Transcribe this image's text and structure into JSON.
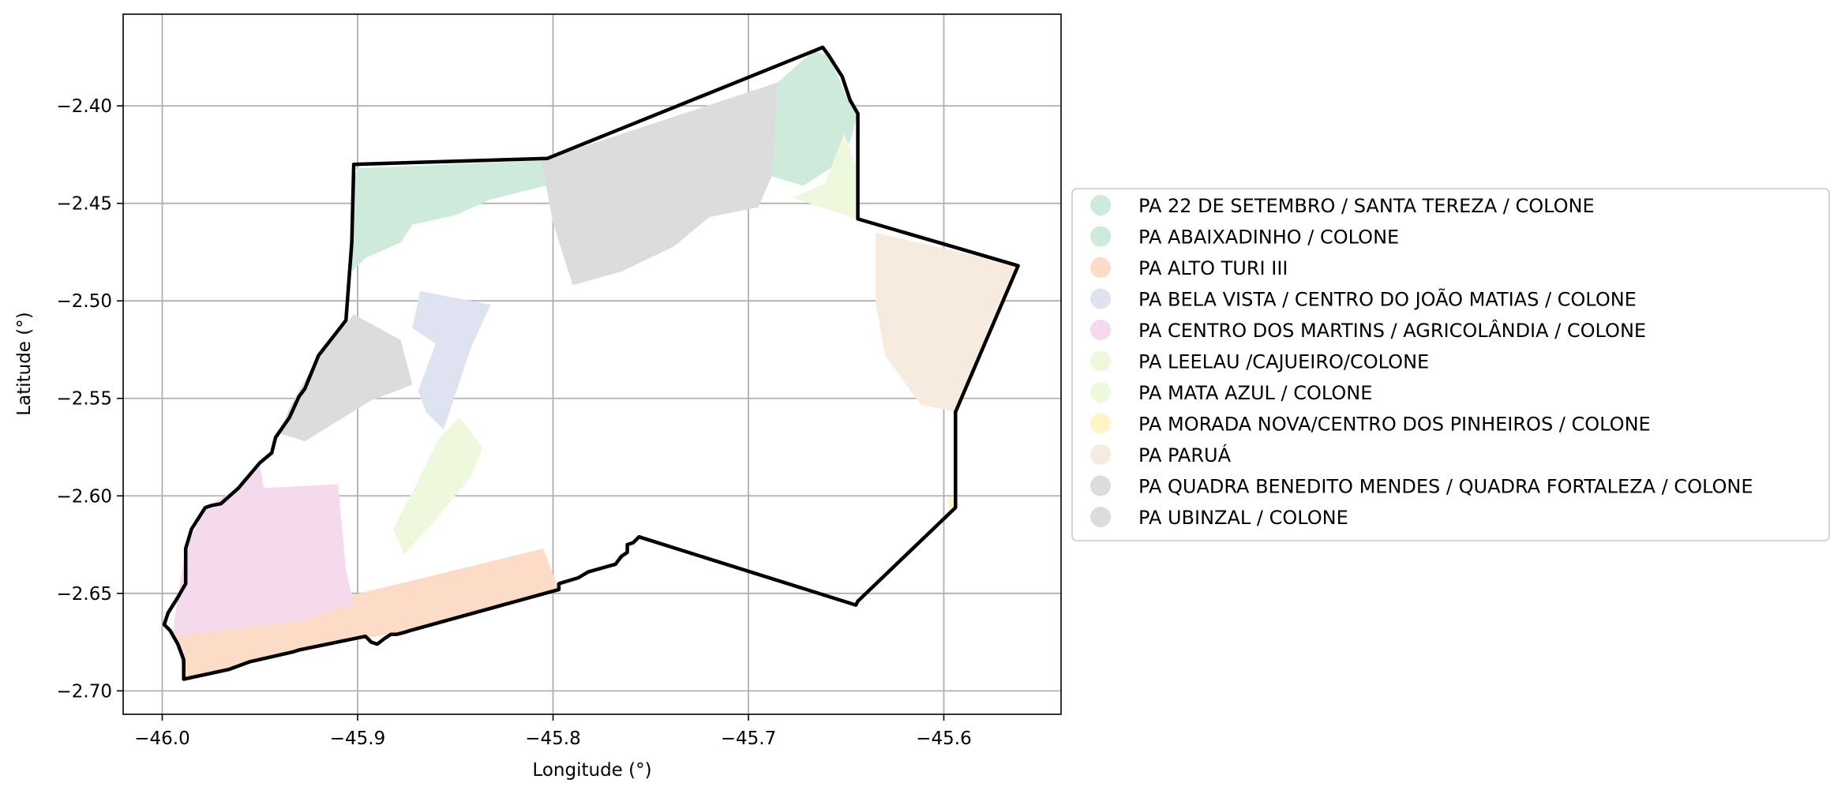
{
  "map": {
    "type": "choropleth-outline",
    "xlabel": "Longitude (°)",
    "ylabel": "Latitude (°)",
    "xlim": [
      -46.02,
      -45.54
    ],
    "ylim": [
      -2.712,
      -2.353
    ],
    "grid": true,
    "legend_position": "right",
    "x_ticks": [
      {
        "value": -46.0,
        "label": "−46.0"
      },
      {
        "value": -45.9,
        "label": "−45.9"
      },
      {
        "value": -45.8,
        "label": "−45.8"
      },
      {
        "value": -45.7,
        "label": "−45.7"
      },
      {
        "value": -45.6,
        "label": "−45.6"
      }
    ],
    "y_ticks": [
      {
        "value": -2.4,
        "label": "−2.40"
      },
      {
        "value": -2.45,
        "label": "−2.45"
      },
      {
        "value": -2.5,
        "label": "−2.50"
      },
      {
        "value": -2.55,
        "label": "−2.55"
      },
      {
        "value": -2.6,
        "label": "−2.60"
      },
      {
        "value": -2.65,
        "label": "−2.65"
      },
      {
        "value": -2.7,
        "label": "−2.70"
      }
    ],
    "boundary": [
      [
        -45.902,
        -2.43
      ],
      [
        -45.803,
        -2.427
      ],
      [
        -45.662,
        -2.37
      ],
      [
        -45.659,
        -2.374
      ],
      [
        -45.652,
        -2.385
      ],
      [
        -45.648,
        -2.397
      ],
      [
        -45.644,
        -2.404
      ],
      [
        -45.644,
        -2.458
      ],
      [
        -45.562,
        -2.482
      ],
      [
        -45.594,
        -2.557
      ],
      [
        -45.594,
        -2.606
      ],
      [
        -45.644,
        -2.654
      ],
      [
        -45.645,
        -2.656
      ],
      [
        -45.756,
        -2.621
      ],
      [
        -45.759,
        -2.624
      ],
      [
        -45.762,
        -2.625
      ],
      [
        -45.762,
        -2.629
      ],
      [
        -45.765,
        -2.631
      ],
      [
        -45.768,
        -2.635
      ],
      [
        -45.782,
        -2.639
      ],
      [
        -45.787,
        -2.642
      ],
      [
        -45.797,
        -2.645
      ],
      [
        -45.797,
        -2.648
      ],
      [
        -45.873,
        -2.669
      ],
      [
        -45.876,
        -2.67
      ],
      [
        -45.88,
        -2.671
      ],
      [
        -45.883,
        -2.671
      ],
      [
        -45.886,
        -2.673
      ],
      [
        -45.89,
        -2.676
      ],
      [
        -45.893,
        -2.675
      ],
      [
        -45.896,
        -2.672
      ],
      [
        -45.93,
        -2.679
      ],
      [
        -45.933,
        -2.68
      ],
      [
        -45.955,
        -2.685
      ],
      [
        -45.966,
        -2.689
      ],
      [
        -45.989,
        -2.694
      ],
      [
        -45.989,
        -2.684
      ],
      [
        -45.992,
        -2.676
      ],
      [
        -45.996,
        -2.669
      ],
      [
        -45.999,
        -2.666
      ],
      [
        -45.997,
        -2.66
      ],
      [
        -45.992,
        -2.652
      ],
      [
        -45.988,
        -2.645
      ],
      [
        -45.988,
        -2.627
      ],
      [
        -45.985,
        -2.617
      ],
      [
        -45.978,
        -2.606
      ],
      [
        -45.975,
        -2.605
      ],
      [
        -45.97,
        -2.604
      ],
      [
        -45.961,
        -2.596
      ],
      [
        -45.95,
        -2.583
      ],
      [
        -45.944,
        -2.578
      ],
      [
        -45.942,
        -2.57
      ],
      [
        -45.935,
        -2.56
      ],
      [
        -45.93,
        -2.549
      ],
      [
        -45.927,
        -2.545
      ],
      [
        -45.92,
        -2.528
      ],
      [
        -45.906,
        -2.51
      ],
      [
        -45.903,
        -2.47
      ],
      [
        -45.902,
        -2.43
      ]
    ],
    "regions": [
      {
        "name": "PA 22 DE SETEMBRO / SANTA TEREZA / COLONE",
        "color": "#cdeadb",
        "polygons": [
          [
            [
              -45.9,
              -2.432
            ],
            [
              -45.806,
              -2.428
            ],
            [
              -45.8,
              -2.44
            ],
            [
              -45.832,
              -2.448
            ],
            [
              -45.85,
              -2.456
            ],
            [
              -45.872,
              -2.461
            ],
            [
              -45.878,
              -2.47
            ],
            [
              -45.896,
              -2.478
            ],
            [
              -45.903,
              -2.485
            ],
            [
              -45.903,
              -2.44
            ]
          ]
        ]
      },
      {
        "name": "PA ABAIXADINHO / COLONE",
        "color": "#cdeadb",
        "polygons": [
          [
            [
              -45.685,
              -2.388
            ],
            [
              -45.667,
              -2.372
            ],
            [
              -45.659,
              -2.374
            ],
            [
              -45.65,
              -2.395
            ],
            [
              -45.644,
              -2.404
            ],
            [
              -45.648,
              -2.418
            ],
            [
              -45.655,
              -2.43
            ],
            [
              -45.672,
              -2.441
            ],
            [
              -45.688,
              -2.436
            ],
            [
              -45.688,
              -2.413
            ]
          ]
        ]
      },
      {
        "name": "PA ALTO TURI III",
        "color": "#fcdcc7",
        "polygons": [
          [
            [
              -45.995,
              -2.672
            ],
            [
              -45.899,
              -2.65
            ],
            [
              -45.805,
              -2.627
            ],
            [
              -45.797,
              -2.648
            ],
            [
              -45.873,
              -2.669
            ],
            [
              -45.93,
              -2.679
            ],
            [
              -45.989,
              -2.694
            ],
            [
              -45.992,
              -2.676
            ]
          ]
        ]
      },
      {
        "name": "PA BELA VISTA / CENTRO DO JOÃO MATIAS / COLONE",
        "color": "#dfe3f1",
        "polygons": [
          [
            [
              -45.868,
              -2.495
            ],
            [
              -45.832,
              -2.502
            ],
            [
              -45.842,
              -2.524
            ],
            [
              -45.856,
              -2.566
            ],
            [
              -45.865,
              -2.557
            ],
            [
              -45.869,
              -2.546
            ],
            [
              -45.86,
              -2.522
            ],
            [
              -45.872,
              -2.514
            ]
          ]
        ]
      },
      {
        "name": "PA CENTRO DOS MARTINS / AGRICOLÂNDIA / COLONE",
        "color": "#f5d9ec",
        "polygons": [
          [
            [
              -45.95,
              -2.585
            ],
            [
              -45.948,
              -2.596
            ],
            [
              -45.91,
              -2.594
            ],
            [
              -45.906,
              -2.638
            ],
            [
              -45.902,
              -2.655
            ],
            [
              -45.93,
              -2.664
            ],
            [
              -45.995,
              -2.672
            ],
            [
              -45.992,
              -2.652
            ],
            [
              -45.988,
              -2.627
            ],
            [
              -45.978,
              -2.606
            ],
            [
              -45.961,
              -2.596
            ]
          ]
        ]
      },
      {
        "name": "PA LEELAU /CAJUEIRO/COLONE",
        "color": "#eef8dc",
        "polygons": [
          [
            [
              -45.651,
              -2.414
            ],
            [
              -45.661,
              -2.44
            ],
            [
              -45.678,
              -2.447
            ],
            [
              -45.644,
              -2.458
            ],
            [
              -45.645,
              -2.43
            ]
          ]
        ]
      },
      {
        "name": "PA MATA AZUL / COLONE",
        "color": "#eef8dc",
        "polygons": [
          [
            [
              -45.848,
              -2.56
            ],
            [
              -45.858,
              -2.57
            ],
            [
              -45.87,
              -2.594
            ],
            [
              -45.882,
              -2.617
            ],
            [
              -45.876,
              -2.63
            ],
            [
              -45.86,
              -2.612
            ],
            [
              -45.842,
              -2.59
            ],
            [
              -45.836,
              -2.575
            ]
          ]
        ]
      },
      {
        "name": "PA MORADA NOVA/CENTRO DOS PINHEIROS / COLONE",
        "color": "#fef4c6",
        "polygons": [
          [
            [
              -45.596,
              -2.6
            ],
            [
              -45.594,
              -2.606
            ],
            [
              -45.597,
              -2.608
            ],
            [
              -45.598,
              -2.602
            ]
          ]
        ]
      },
      {
        "name": "PA PARUÁ",
        "color": "#f6ebde",
        "polygons": [
          [
            [
              -45.635,
              -2.465
            ],
            [
              -45.562,
              -2.482
            ],
            [
              -45.594,
              -2.557
            ],
            [
              -45.612,
              -2.553
            ],
            [
              -45.63,
              -2.528
            ],
            [
              -45.635,
              -2.5
            ]
          ]
        ]
      },
      {
        "name": "PA QUADRA BENEDITO MENDES / QUADRA FORTALEZA / COLONE",
        "color": "#dcdcdc",
        "polygons": [
          [
            [
              -45.806,
              -2.428
            ],
            [
              -45.685,
              -2.388
            ],
            [
              -45.688,
              -2.436
            ],
            [
              -45.695,
              -2.452
            ],
            [
              -45.72,
              -2.457
            ],
            [
              -45.738,
              -2.472
            ],
            [
              -45.765,
              -2.485
            ],
            [
              -45.79,
              -2.492
            ],
            [
              -45.8,
              -2.46
            ]
          ]
        ]
      },
      {
        "name": "PA UBINZAL / COLONE",
        "color": "#dcdcdc",
        "polygons": [
          [
            [
              -45.92,
              -2.528
            ],
            [
              -45.902,
              -2.507
            ],
            [
              -45.878,
              -2.52
            ],
            [
              -45.872,
              -2.543
            ],
            [
              -45.893,
              -2.551
            ],
            [
              -45.927,
              -2.572
            ],
            [
              -45.94,
              -2.568
            ],
            [
              -45.935,
              -2.555
            ]
          ]
        ]
      }
    ]
  }
}
